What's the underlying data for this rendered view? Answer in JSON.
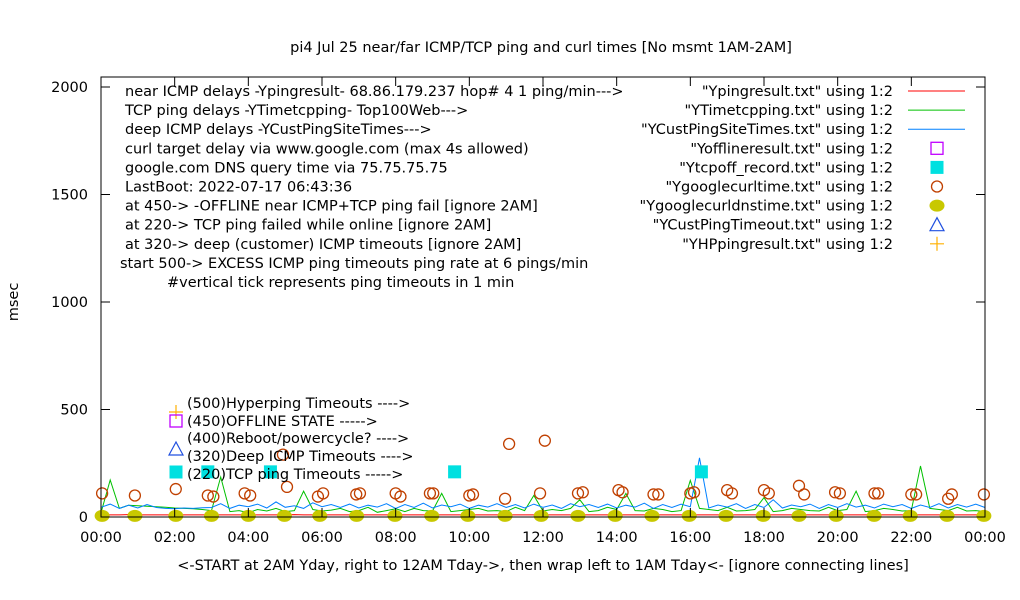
{
  "chart_data": {
    "type": "line",
    "title": "pi4 Jul 25  near/far ICMP/TCP ping and curl times [No msmt 1AM-2AM]",
    "xlabel": "<-START at 2AM Yday, right to 12AM Tday->, then wrap left to 1AM Tday<- [ignore connecting lines]",
    "ylabel": "msec",
    "xlim_hours": [
      0,
      24
    ],
    "ylim": [
      0,
      2000
    ],
    "x_tick_labels": [
      "00:00",
      "02:00",
      "04:00",
      "06:00",
      "08:00",
      "10:00",
      "12:00",
      "14:00",
      "16:00",
      "18:00",
      "20:00",
      "22:00",
      "00:00"
    ],
    "y_tick_labels": [
      "0",
      "500",
      "1000",
      "1500",
      "2000"
    ],
    "y_ticks": [
      0,
      500,
      1000,
      1500,
      2000
    ],
    "grid": false,
    "legend_placement": "top-right",
    "notes": [
      "near ICMP delays -Ypingresult- 68.86.179.237 hop# 4 1 ping/min--->",
      "TCP ping delays -YTimetcpping- Top100Web--->",
      "deep ICMP delays -YCustPingSiteTimes--->",
      "curl target delay via www.google.com (max 4s allowed)",
      "google.com DNS query time via 75.75.75.75",
      "LastBoot: 2022-07-17 06:43:36",
      "at 450-> -OFFLINE near ICMP+TCP ping fail [ignore 2AM]",
      "at 220-> TCP ping failed while online [ignore 2AM]",
      "at 320-> deep (customer) ICMP timeouts [ignore 2AM]",
      "start 500-> EXCESS ICMP ping timeouts ping rate at 6 pings/min",
      "#vertical tick represents ping timeouts in 1 min"
    ],
    "marker_labels": [
      "(500)Hyperping Timeouts ---->",
      "(450)OFFLINE STATE ----->",
      "(400)Reboot/powercycle? ---->",
      "(320)Deep ICMP Timeouts ---->",
      "(220)TCP ping Timeouts ----->"
    ],
    "x_step_minutes": 15,
    "series": [
      {
        "name": "\"Ypingresult.txt\" using 1:2",
        "style": "line",
        "color": "#ff0000",
        "values": [
          10,
          10,
          10,
          11,
          10,
          10,
          10,
          10,
          10,
          10,
          10,
          10,
          10,
          10,
          10,
          10,
          10,
          10,
          10,
          10,
          10,
          11,
          10,
          10,
          10,
          10,
          10,
          10,
          10,
          10,
          10,
          10,
          10,
          10,
          10,
          10,
          10,
          10,
          10,
          10,
          10,
          10,
          10,
          10,
          10,
          10,
          10,
          10,
          10,
          10,
          10,
          10,
          10,
          10,
          10,
          10,
          10,
          10,
          10,
          10,
          10,
          10,
          10,
          10,
          10,
          10,
          10,
          10,
          10,
          10,
          10,
          10,
          10,
          10,
          10,
          10,
          10,
          10,
          10,
          10,
          10,
          10,
          10,
          10,
          10,
          10,
          10,
          10,
          10,
          10,
          10,
          10,
          10,
          10,
          10,
          10,
          10
        ]
      },
      {
        "name": "\"YTimetcpping.txt\" using 1:2",
        "style": "line",
        "color": "#00c000",
        "values": [
          20,
          172,
          40,
          55,
          52,
          50,
          48,
          45,
          42,
          40,
          38,
          35,
          30,
          186,
          25,
          30,
          20,
          35,
          28,
          40,
          25,
          30,
          120,
          35,
          28,
          32,
          40,
          25,
          30,
          45,
          22,
          30,
          38,
          25,
          40,
          30,
          28,
          110,
          25,
          30,
          35,
          40,
          28,
          30,
          25,
          45,
          30,
          100,
          28,
          35,
          30,
          40,
          80,
          25,
          30,
          45,
          35,
          110,
          30,
          28,
          40,
          35,
          25,
          30,
          170,
          40,
          35,
          30,
          45,
          28,
          30,
          35,
          90,
          25,
          30,
          40,
          35,
          30,
          28,
          45,
          30,
          35,
          120,
          25,
          30,
          40,
          35,
          28,
          30,
          237,
          40,
          35,
          30,
          45,
          28,
          30,
          25
        ]
      },
      {
        "name": "\"YCustPingSiteTimes.txt\" using 1:2",
        "style": "line",
        "color": "#0080ff",
        "values": [
          45,
          60,
          40,
          55,
          42,
          58,
          44,
          40,
          38,
          42,
          40,
          43,
          44,
          62,
          40,
          55,
          48,
          60,
          42,
          70,
          45,
          52,
          40,
          66,
          48,
          58,
          44,
          60,
          42,
          55,
          46,
          62,
          40,
          58,
          44,
          64,
          42,
          56,
          48,
          60,
          40,
          55,
          46,
          62,
          44,
          58,
          42,
          60,
          45,
          56,
          40,
          62,
          48,
          58,
          44,
          60,
          42,
          55,
          46,
          64,
          40,
          58,
          44,
          60,
          48,
          275,
          42,
          56,
          46,
          62,
          40,
          58,
          44,
          80,
          42,
          56,
          48,
          60,
          40,
          58,
          44,
          62,
          46,
          55,
          42,
          60,
          48,
          58,
          40,
          56,
          44,
          62,
          42,
          58,
          46,
          60,
          44
        ]
      },
      {
        "name": "\"Yofflineresult.txt\" using 1:2",
        "style": "open-square",
        "color": "#c000ff",
        "points": []
      },
      {
        "name": "\"Ytcpoff_record.txt\" using 1:2",
        "style": "filled-square",
        "color": "#00e0e0",
        "points": [
          [
            2.9,
            210
          ],
          [
            4.6,
            210
          ],
          [
            9.6,
            210
          ],
          [
            16.3,
            210
          ]
        ]
      },
      {
        "name": "\"Ygooglecurltime.txt\" using 1:2",
        "style": "open-circle",
        "color": "#c04000",
        "points": [
          [
            0.03,
            110
          ],
          [
            0.92,
            100
          ],
          [
            2.03,
            130
          ],
          [
            2.9,
            100
          ],
          [
            3.05,
            95
          ],
          [
            3.9,
            110
          ],
          [
            4.05,
            100
          ],
          [
            4.94,
            290
          ],
          [
            5.05,
            140
          ],
          [
            5.89,
            95
          ],
          [
            6.03,
            110
          ],
          [
            6.93,
            105
          ],
          [
            7.03,
            110
          ],
          [
            8.0,
            110
          ],
          [
            8.13,
            95
          ],
          [
            8.93,
            110
          ],
          [
            9.02,
            110
          ],
          [
            10.0,
            100
          ],
          [
            10.1,
            105
          ],
          [
            10.97,
            85
          ],
          [
            11.08,
            340
          ],
          [
            11.92,
            110
          ],
          [
            12.05,
            355
          ],
          [
            12.95,
            110
          ],
          [
            13.08,
            115
          ],
          [
            14.05,
            125
          ],
          [
            14.16,
            115
          ],
          [
            15.0,
            105
          ],
          [
            15.13,
            105
          ],
          [
            16.0,
            110
          ],
          [
            16.1,
            115
          ],
          [
            17.0,
            125
          ],
          [
            17.13,
            110
          ],
          [
            18.0,
            125
          ],
          [
            18.13,
            110
          ],
          [
            18.95,
            145
          ],
          [
            19.09,
            105
          ],
          [
            19.93,
            115
          ],
          [
            20.06,
            110
          ],
          [
            21.0,
            110
          ],
          [
            21.1,
            110
          ],
          [
            22.0,
            105
          ],
          [
            22.13,
            105
          ],
          [
            23.0,
            85
          ],
          [
            23.1,
            105
          ],
          [
            23.97,
            105
          ]
        ]
      },
      {
        "name": "\"Ygooglecurldnstime.txt\" using 1:2",
        "style": "filled-circle",
        "color": "#c8c800",
        "points": [
          [
            0.03,
            5
          ],
          [
            0.92,
            5
          ],
          [
            2.03,
            5
          ],
          [
            3.0,
            5
          ],
          [
            4.0,
            5
          ],
          [
            4.98,
            5
          ],
          [
            5.94,
            5
          ],
          [
            6.94,
            5
          ],
          [
            7.98,
            5
          ],
          [
            8.98,
            5
          ],
          [
            9.96,
            5
          ],
          [
            10.97,
            5
          ],
          [
            11.95,
            5
          ],
          [
            12.95,
            5
          ],
          [
            13.96,
            5
          ],
          [
            14.96,
            5
          ],
          [
            15.97,
            5
          ],
          [
            16.97,
            5
          ],
          [
            17.98,
            5
          ],
          [
            18.95,
            5
          ],
          [
            19.96,
            5
          ],
          [
            20.99,
            5
          ],
          [
            21.97,
            5
          ],
          [
            22.97,
            5
          ],
          [
            23.97,
            5
          ]
        ]
      },
      {
        "name": "\"YCustPingTimeout.txt\" using 1:2",
        "style": "open-triangle",
        "color": "#2050e0",
        "points": []
      },
      {
        "name": "\"YHPpingresult.txt\" using 1:2",
        "style": "plus",
        "color": "#ffb000",
        "points": []
      }
    ]
  }
}
